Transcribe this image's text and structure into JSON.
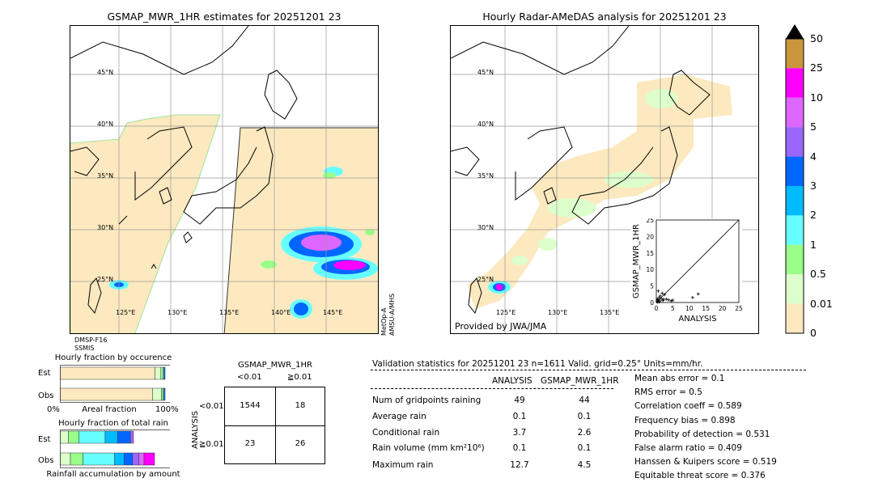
{
  "left_map": {
    "title": "GSMAP_MWR_1HR estimates for 20251201 23",
    "lat_labels": [
      "45°N",
      "40°N",
      "35°N",
      "30°N",
      "25°N"
    ],
    "lon_labels": [
      "125°E",
      "130°E",
      "135°E",
      "140°E",
      "145°E"
    ],
    "sensors_left": "DMSP-F16\nSSMIS",
    "sensors_right": "MetOp-A\nAMSU-A/MHS"
  },
  "right_map": {
    "title": "Hourly Radar-AMeDAS analysis for 20251201 23",
    "lat_labels": [
      "45°N",
      "40°N",
      "35°N",
      "30°N",
      "25°N"
    ],
    "lon_labels": [
      "125°E",
      "130°E",
      "135°E"
    ],
    "credit": "Provided by JWA/JMA"
  },
  "colorbar": {
    "labels": [
      "50",
      "25",
      "10",
      "5",
      "4",
      "3",
      "2",
      "1",
      "0.5",
      "0.01",
      "0"
    ],
    "colors": [
      "#c8963c",
      "#ff00ff",
      "#dd66ff",
      "#9966ff",
      "#0066ff",
      "#00bbff",
      "#66ffff",
      "#99ff88",
      "#ddffcc",
      "#fde9bf"
    ]
  },
  "chart_data": [
    {
      "type": "scatter",
      "title": "",
      "xlabel": "ANALYSIS",
      "ylabel": "GSMAP_MWR_1HR",
      "xlim": [
        0,
        25
      ],
      "ylim": [
        0,
        25
      ],
      "xticks": [
        "0",
        "5",
        "10",
        "15",
        "20",
        "25"
      ],
      "yticks": [
        "0",
        "5",
        "10",
        "15",
        "20",
        "25"
      ],
      "x": [
        0.2,
        0.5,
        0.8,
        1.0,
        1.2,
        0.3,
        0.6,
        1.5,
        2.0,
        2.5,
        3.0,
        3.7,
        4.5,
        5.0,
        12.7,
        11.0,
        2.2,
        1.8,
        0.9,
        0.4
      ],
      "y": [
        0.3,
        0.8,
        1.5,
        0.5,
        2.0,
        1.0,
        3.5,
        1.2,
        0.6,
        2.4,
        1.0,
        0.8,
        0.5,
        0.7,
        2.6,
        1.5,
        1.0,
        2.8,
        0.2,
        0.1
      ]
    },
    {
      "type": "bar",
      "title": "Hourly fraction by occurence",
      "categories": [
        "Est",
        "Obs"
      ],
      "xlabel": "Areal fraction",
      "xtick_left": "0%",
      "xtick_right": "100%",
      "series": [
        {
          "values": [
            0.905,
            0.88
          ]
        },
        {
          "values": [
            0.055,
            0.085
          ]
        },
        {
          "values": [
            0.02,
            0.015
          ]
        },
        {
          "values": [
            0.01,
            0.01
          ]
        },
        {
          "values": [
            0.01,
            0.01
          ]
        }
      ]
    },
    {
      "type": "bar",
      "title": "Hourly fraction of total rain",
      "categories": [
        "Est",
        "Obs"
      ],
      "xlabel": "Rainfall accumulation by amount",
      "series": [
        {
          "values": [
            0.08,
            0.1
          ]
        },
        {
          "values": [
            0.1,
            0.12
          ]
        },
        {
          "values": [
            0.25,
            0.3
          ]
        },
        {
          "values": [
            0.12,
            0.09
          ]
        },
        {
          "values": [
            0.12,
            0.08
          ]
        },
        {
          "values": [
            0.03,
            0.06
          ]
        },
        {
          "values": [
            0.0,
            0.05
          ]
        },
        {
          "values": [
            0.0,
            0.1
          ]
        }
      ]
    },
    {
      "type": "table",
      "title": "GSMAP_MWR_1HR",
      "col_headers": [
        "<0.01",
        "≧0.01"
      ],
      "row_label": "ANALYSIS",
      "row_headers": [
        "<0.01",
        "≧0.01"
      ],
      "cells": [
        [
          "1544",
          "18"
        ],
        [
          "23",
          "26"
        ]
      ]
    }
  ],
  "validation": {
    "header": "Validation statistics for 20251201 23  n=1611 Valid. grid=0.25° Units=mm/hr.",
    "col_analysis": "ANALYSIS",
    "col_gsmap": "GSMAP_MWR_1HR",
    "rows": [
      {
        "label": "Num of gridpoints raining",
        "analysis": "49",
        "gsmap": "44"
      },
      {
        "label": "Average rain",
        "analysis": "0.1",
        "gsmap": "0.1"
      },
      {
        "label": "Conditional rain",
        "analysis": "3.7",
        "gsmap": "2.6"
      },
      {
        "label": "Rain volume (mm km²10⁶)",
        "analysis": "0.1",
        "gsmap": "0.1"
      },
      {
        "label": "Maximum rain",
        "analysis": "12.7",
        "gsmap": "4.5"
      }
    ],
    "scores": [
      "Mean abs error =    0.1",
      "RMS error =    0.5",
      "Correlation coeff =  0.589",
      "Frequency bias =  0.898",
      "Probability of detection =  0.531",
      "False alarm ratio =  0.409",
      "Hanssen & Kuipers score =  0.519",
      "Equitable threat score =  0.376"
    ]
  }
}
